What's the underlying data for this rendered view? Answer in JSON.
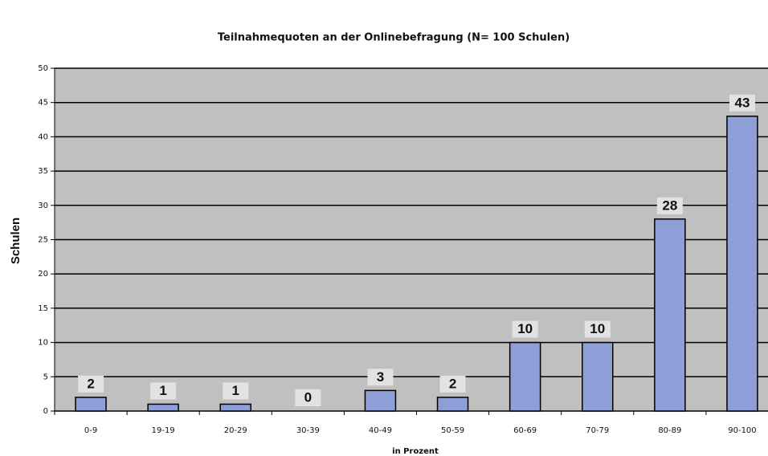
{
  "chart_data": {
    "type": "bar",
    "title": "Teilnahmequoten an der Onlinebefragung (N= 100 Schulen)",
    "y_label": "Schulen",
    "x_label": "in Prozent",
    "categories": [
      "0-9",
      "19-19",
      "20-29",
      "30-39",
      "40-49",
      "50-59",
      "60-69",
      "70-79",
      "80-89",
      "90-100"
    ],
    "values": [
      2,
      1,
      1,
      0,
      3,
      2,
      10,
      10,
      28,
      43
    ],
    "color": "#8e9ed6",
    "ylim": [
      0,
      50
    ],
    "yticks": [
      0,
      5,
      10,
      15,
      20,
      25,
      30,
      35,
      40,
      45,
      50
    ],
    "grid": true,
    "value_labels_shown": true
  }
}
